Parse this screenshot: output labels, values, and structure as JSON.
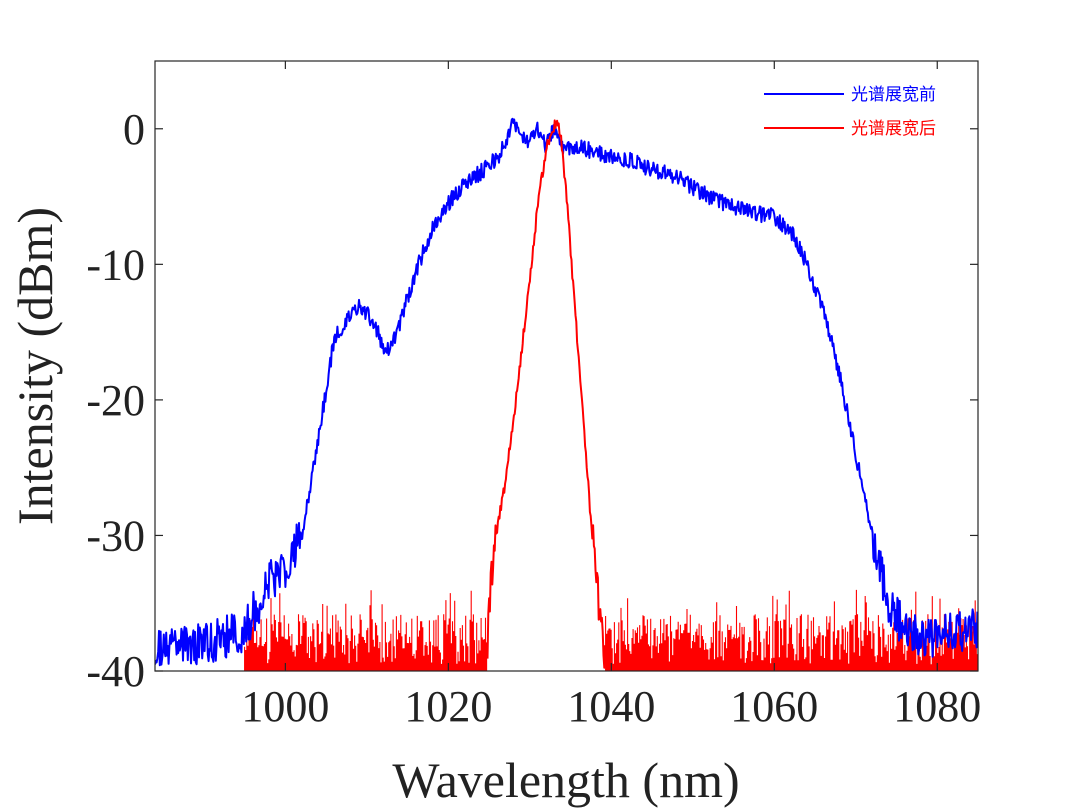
{
  "chart_data": {
    "type": "line",
    "title": "",
    "xlabel": "Wavelength (nm)",
    "ylabel": "Intensity (dBm)",
    "xlim": [
      984,
      1085
    ],
    "ylim": [
      -40,
      5
    ],
    "xticks": [
      1000,
      1020,
      1040,
      1060,
      1080
    ],
    "yticks": [
      0,
      -10,
      -20,
      -30,
      -40
    ],
    "legend_position": "top-right",
    "grid": false,
    "series": [
      {
        "name": "光谱展宽前",
        "color": "#0000ff",
        "noise_dB": 0.6,
        "x": [
          984,
          990,
          995,
          998,
          1000,
          1002,
          1004,
          1006,
          1008,
          1009,
          1010,
          1011,
          1012,
          1013,
          1014,
          1016,
          1018,
          1020,
          1022,
          1024,
          1025,
          1026,
          1027,
          1028,
          1029,
          1030,
          1031,
          1032,
          1033,
          1034,
          1035,
          1036,
          1038,
          1040,
          1042,
          1045,
          1048,
          1050,
          1053,
          1056,
          1060,
          1062,
          1064,
          1066,
          1068,
          1070,
          1072,
          1074,
          1076,
          1078,
          1080,
          1082,
          1085
        ],
        "y": [
          -38,
          -38,
          -37,
          -33.5,
          -32.5,
          -30,
          -23,
          -15.5,
          -13.8,
          -13.2,
          -13.6,
          -14.5,
          -16,
          -16.2,
          -14.5,
          -10.5,
          -7.5,
          -5.5,
          -4,
          -3.2,
          -2.6,
          -2.2,
          -1,
          0.5,
          -0.6,
          -1,
          0,
          -1.3,
          0,
          -1.4,
          -1.5,
          -1.3,
          -1.7,
          -2.1,
          -2.3,
          -3,
          -3.5,
          -4.3,
          -5.3,
          -6,
          -6.5,
          -7.5,
          -10,
          -13.5,
          -18,
          -24,
          -30,
          -35,
          -37,
          -37.5,
          -37.3,
          -37.2,
          -37
        ]
      },
      {
        "name": "光谱展宽后",
        "color": "#ff0000",
        "noise_dB": 0.4,
        "x": [
          1024.8,
          1025.5,
          1027,
          1028.5,
          1030,
          1031,
          1032,
          1032.8,
          1033.3,
          1033.8,
          1034.5,
          1035.5,
          1036.5,
          1037.5,
          1038.5,
          1039.3
        ],
        "y": [
          -38,
          -31,
          -26,
          -19,
          -11,
          -5.5,
          -1.5,
          0,
          0.5,
          -0.5,
          -5,
          -13,
          -21,
          -29,
          -35,
          -39.5
        ]
      }
    ],
    "noise_floor": {
      "series_color": "#ff0000",
      "ranges": [
        [
          995,
          1024.8
        ],
        [
          1039.3,
          1085
        ]
      ],
      "base_dBm": -40,
      "typical_top_dBm": -37,
      "max_top_dBm": -34
    }
  }
}
